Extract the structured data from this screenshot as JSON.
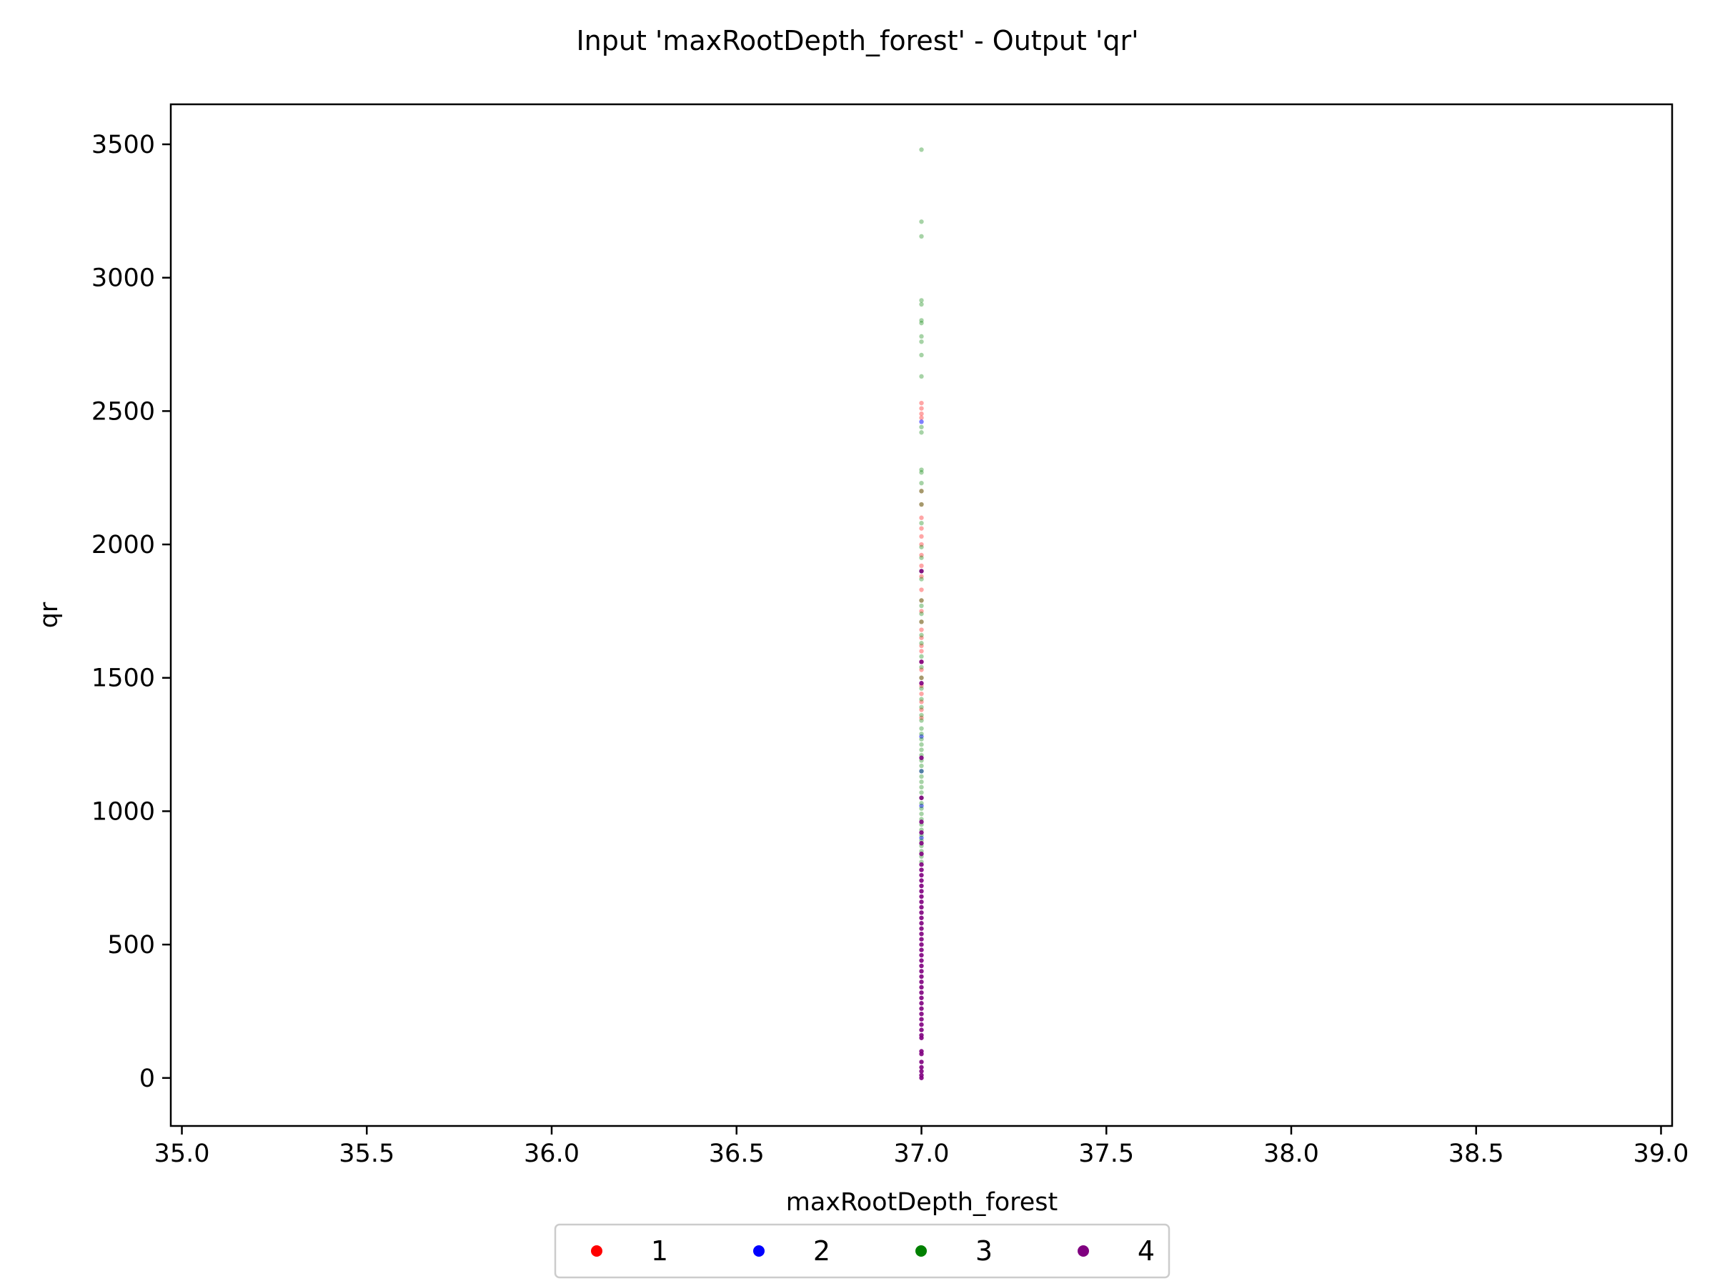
{
  "chart_data": {
    "type": "scatter",
    "title": "Input 'maxRootDepth_forest' - Output 'qr'",
    "xlabel": "maxRootDepth_forest",
    "ylabel": "qr",
    "xlim": [
      34.97,
      39.03
    ],
    "ylim": [
      -180,
      3650
    ],
    "xticks": [
      35.0,
      35.5,
      36.0,
      36.5,
      37.0,
      37.5,
      38.0,
      38.5,
      39.0
    ],
    "xtick_labels": [
      "35.0",
      "35.5",
      "36.0",
      "36.5",
      "37.0",
      "37.5",
      "38.0",
      "38.5",
      "39.0"
    ],
    "yticks": [
      0,
      500,
      1000,
      1500,
      2000,
      2500,
      3000,
      3500
    ],
    "ytick_labels": [
      "0",
      "500",
      "1000",
      "1500",
      "2000",
      "2500",
      "3000",
      "3500"
    ],
    "legend_position": "bottom-center",
    "series": [
      {
        "name": "1",
        "color": "#ff0000",
        "x": 37.0,
        "y": [
          2530,
          2510,
          2490,
          2475,
          2200,
          2150,
          2100,
          2060,
          2030,
          2000,
          1960,
          1920,
          1880,
          1830,
          1790,
          1750,
          1710,
          1680,
          1650,
          1620,
          1600,
          1560,
          1530,
          1500,
          1470,
          1440,
          1410,
          1380,
          1350
        ]
      },
      {
        "name": "2",
        "color": "#0000ff",
        "x": 37.0,
        "y": [
          2460,
          1280,
          1150,
          1020,
          900
        ]
      },
      {
        "name": "3",
        "color": "#008000",
        "x": 37.0,
        "y": [
          3480,
          3210,
          3155,
          2915,
          2900,
          2840,
          2830,
          2780,
          2760,
          2710,
          2630,
          2440,
          2420,
          2280,
          2270,
          2230,
          2200,
          2150,
          2080,
          1990,
          1950,
          1900,
          1870,
          1790,
          1770,
          1740,
          1710,
          1660,
          1630,
          1580,
          1540,
          1500,
          1460,
          1420,
          1390,
          1360,
          1340,
          1310,
          1290,
          1270,
          1250,
          1230,
          1210,
          1190,
          1170,
          1150,
          1130,
          1110,
          1090,
          1070,
          1050,
          1030,
          1010,
          990,
          970,
          950,
          930,
          910,
          890,
          870,
          850,
          830,
          810
        ]
      },
      {
        "name": "4",
        "color": "#800080",
        "x": 37.0,
        "y": [
          1900,
          1560,
          1480,
          1200,
          1050,
          960,
          920,
          880,
          840,
          800,
          780,
          760,
          740,
          720,
          700,
          680,
          660,
          640,
          620,
          600,
          580,
          560,
          540,
          520,
          500,
          480,
          460,
          440,
          420,
          400,
          380,
          360,
          340,
          320,
          300,
          280,
          260,
          240,
          220,
          200,
          180,
          160,
          150,
          100,
          90,
          60,
          40,
          25,
          10,
          0
        ]
      }
    ]
  }
}
